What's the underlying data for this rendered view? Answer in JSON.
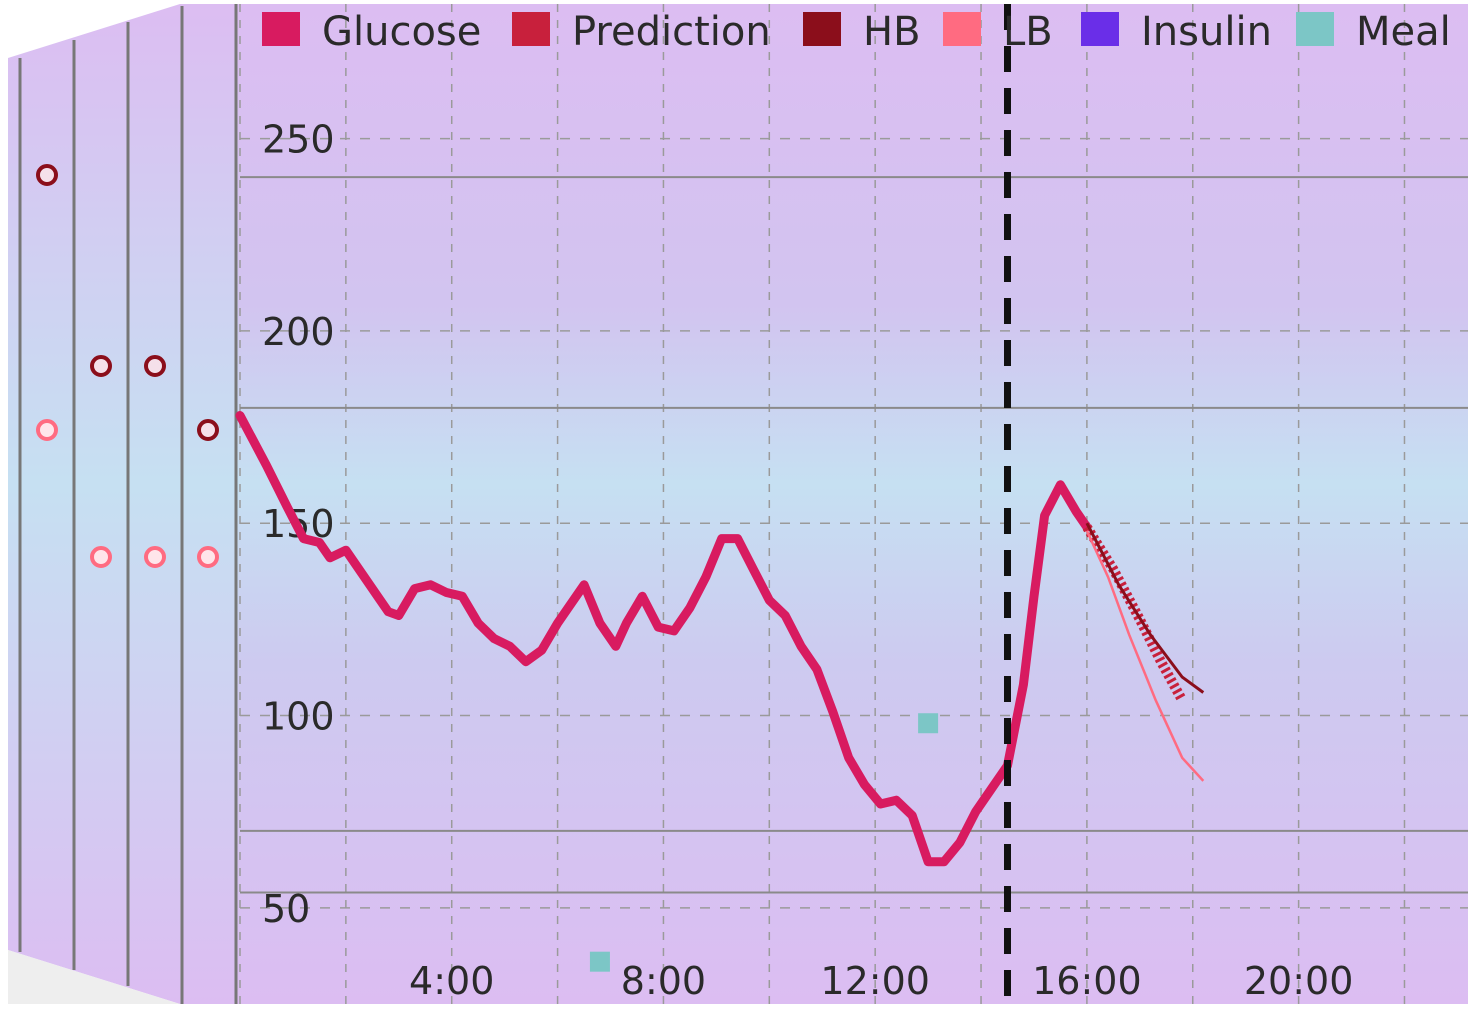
{
  "chart_data": {
    "type": "line",
    "legend": {
      "placement": "top",
      "items": [
        {
          "label": "Glucose",
          "color": "#d81b60"
        },
        {
          "label": "Prediction",
          "color": "#c8203c"
        },
        {
          "label": "HB",
          "color": "#8b0e1b"
        },
        {
          "label": "LB",
          "color": "#ff6b81"
        },
        {
          "label": "Insulin",
          "color": "#6a2ee8"
        },
        {
          "label": "Meal",
          "color": "#7cc6c6"
        }
      ]
    },
    "x_axis": {
      "unit": "hours",
      "range": [
        0,
        23.2
      ],
      "ticks": [
        {
          "value": 4,
          "label": "4:00"
        },
        {
          "value": 8,
          "label": "8:00"
        },
        {
          "value": 12,
          "label": "12:00"
        },
        {
          "value": 16,
          "label": "16:00"
        },
        {
          "value": 20,
          "label": "20:00"
        }
      ],
      "minor_gridlines": [
        0,
        2,
        4,
        6,
        8,
        10,
        12,
        14,
        16,
        18,
        20,
        22
      ]
    },
    "y_axis": {
      "unit": "mg/dL",
      "range": [
        25,
        285
      ],
      "ticks": [
        {
          "value": 50,
          "label": "50"
        },
        {
          "value": 100,
          "label": "100"
        },
        {
          "value": 150,
          "label": "150"
        },
        {
          "value": 200,
          "label": "200"
        },
        {
          "value": 250,
          "label": "250"
        }
      ],
      "reference_lines": [
        54,
        70,
        180,
        240
      ]
    },
    "grid": true,
    "background_bands": "pink-blue-pink",
    "current_time": 14.5,
    "series": [
      {
        "name": "Glucose",
        "color": "#d81b60",
        "points": [
          [
            0,
            178
          ],
          [
            0.5,
            165
          ],
          [
            0.9,
            154
          ],
          [
            1.2,
            146
          ],
          [
            1.5,
            145
          ],
          [
            1.7,
            141
          ],
          [
            2.0,
            143
          ],
          [
            2.3,
            137
          ],
          [
            2.6,
            131
          ],
          [
            2.8,
            127
          ],
          [
            3.0,
            126
          ],
          [
            3.3,
            133
          ],
          [
            3.6,
            134
          ],
          [
            3.9,
            132
          ],
          [
            4.2,
            131
          ],
          [
            4.5,
            124
          ],
          [
            4.8,
            120
          ],
          [
            5.1,
            118
          ],
          [
            5.4,
            114
          ],
          [
            5.7,
            117
          ],
          [
            6.0,
            124
          ],
          [
            6.2,
            128
          ],
          [
            6.5,
            134
          ],
          [
            6.8,
            124
          ],
          [
            7.1,
            118
          ],
          [
            7.3,
            124
          ],
          [
            7.6,
            131
          ],
          [
            7.9,
            123
          ],
          [
            8.2,
            122
          ],
          [
            8.5,
            128
          ],
          [
            8.8,
            136
          ],
          [
            9.1,
            146
          ],
          [
            9.4,
            146
          ],
          [
            9.7,
            138
          ],
          [
            10.0,
            130
          ],
          [
            10.3,
            126
          ],
          [
            10.6,
            118
          ],
          [
            10.9,
            112
          ],
          [
            11.2,
            101
          ],
          [
            11.5,
            89
          ],
          [
            11.8,
            82
          ],
          [
            12.1,
            77
          ],
          [
            12.4,
            78
          ],
          [
            12.7,
            74
          ],
          [
            13.0,
            62
          ],
          [
            13.3,
            62
          ],
          [
            13.6,
            67
          ],
          [
            13.9,
            75
          ],
          [
            14.2,
            81
          ],
          [
            14.5,
            87
          ],
          [
            14.8,
            108
          ],
          [
            15.0,
            131
          ],
          [
            15.2,
            152
          ],
          [
            15.5,
            160
          ],
          [
            15.8,
            153
          ],
          [
            16.0,
            149
          ]
        ]
      },
      {
        "name": "Prediction",
        "color": "#c8203c",
        "points": [
          [
            16.0,
            149
          ],
          [
            16.5,
            138
          ],
          [
            17.0,
            125
          ],
          [
            17.4,
            114
          ],
          [
            17.8,
            104
          ]
        ]
      },
      {
        "name": "HB",
        "color": "#8b0e1b",
        "points": [
          [
            16.0,
            150
          ],
          [
            16.6,
            134
          ],
          [
            17.2,
            121
          ],
          [
            17.8,
            110
          ],
          [
            18.2,
            106
          ]
        ]
      },
      {
        "name": "LB",
        "color": "#ff6b81",
        "points": [
          [
            16.0,
            148
          ],
          [
            16.4,
            136
          ],
          [
            16.8,
            121
          ],
          [
            17.3,
            104
          ],
          [
            17.8,
            89
          ],
          [
            18.2,
            83
          ]
        ]
      },
      {
        "name": "Meal",
        "color": "#7cc6c6",
        "marker": "square",
        "points": [
          [
            6.8,
            36
          ],
          [
            13.0,
            98
          ]
        ]
      }
    ]
  }
}
